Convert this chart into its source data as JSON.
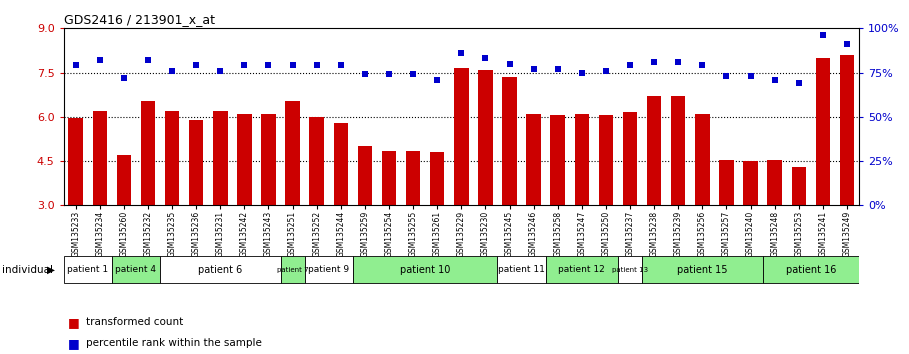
{
  "title": "GDS2416 / 213901_x_at",
  "samples": [
    "GSM135233",
    "GSM135234",
    "GSM135260",
    "GSM135232",
    "GSM135235",
    "GSM135236",
    "GSM135231",
    "GSM135242",
    "GSM135243",
    "GSM135251",
    "GSM135252",
    "GSM135244",
    "GSM135259",
    "GSM135254",
    "GSM135255",
    "GSM135261",
    "GSM135229",
    "GSM135230",
    "GSM135245",
    "GSM135246",
    "GSM135258",
    "GSM135247",
    "GSM135250",
    "GSM135237",
    "GSM135238",
    "GSM135239",
    "GSM135256",
    "GSM135257",
    "GSM135240",
    "GSM135248",
    "GSM135253",
    "GSM135241",
    "GSM135249"
  ],
  "bar_values": [
    5.95,
    6.2,
    4.7,
    6.55,
    6.2,
    5.9,
    6.2,
    6.1,
    6.1,
    6.55,
    6.0,
    5.8,
    5.0,
    4.85,
    4.85,
    4.8,
    7.65,
    7.6,
    7.35,
    6.1,
    6.05,
    6.1,
    6.05,
    6.15,
    6.7,
    6.7,
    6.1,
    4.55,
    4.5,
    4.55,
    4.3,
    8.0,
    8.1
  ],
  "blue_values": [
    79,
    82,
    72,
    82,
    76,
    79,
    76,
    79,
    79,
    79,
    79,
    79,
    74,
    74,
    74,
    71,
    86,
    83,
    80,
    77,
    77,
    75,
    76,
    79,
    81,
    81,
    79,
    73,
    73,
    71,
    69,
    96,
    91
  ],
  "patients": [
    {
      "label": "patient 1",
      "start": 0,
      "end": 2,
      "color": "#ffffff"
    },
    {
      "label": "patient 4",
      "start": 2,
      "end": 4,
      "color": "#90EE90"
    },
    {
      "label": "patient 6",
      "start": 4,
      "end": 9,
      "color": "#ffffff"
    },
    {
      "label": "patient 7",
      "start": 9,
      "end": 10,
      "color": "#90EE90"
    },
    {
      "label": "patient 9",
      "start": 10,
      "end": 12,
      "color": "#ffffff"
    },
    {
      "label": "patient 10",
      "start": 12,
      "end": 18,
      "color": "#90EE90"
    },
    {
      "label": "patient 11",
      "start": 18,
      "end": 20,
      "color": "#ffffff"
    },
    {
      "label": "patient 12",
      "start": 20,
      "end": 23,
      "color": "#90EE90"
    },
    {
      "label": "patient 13",
      "start": 23,
      "end": 24,
      "color": "#ffffff"
    },
    {
      "label": "patient 15",
      "start": 24,
      "end": 29,
      "color": "#90EE90"
    },
    {
      "label": "patient 16",
      "start": 29,
      "end": 33,
      "color": "#90EE90"
    }
  ],
  "ylim_left": [
    3,
    9
  ],
  "ylim_right": [
    0,
    100
  ],
  "yticks_left": [
    3,
    4.5,
    6,
    7.5,
    9
  ],
  "yticks_right": [
    0,
    25,
    50,
    75,
    100
  ],
  "bar_color": "#CC0000",
  "dot_color": "#0000CC",
  "bg_color": "#ffffff",
  "grid_color": "#000000",
  "left_label_color": "#CC0000",
  "right_label_color": "#0000CC",
  "title_fontsize": 9
}
